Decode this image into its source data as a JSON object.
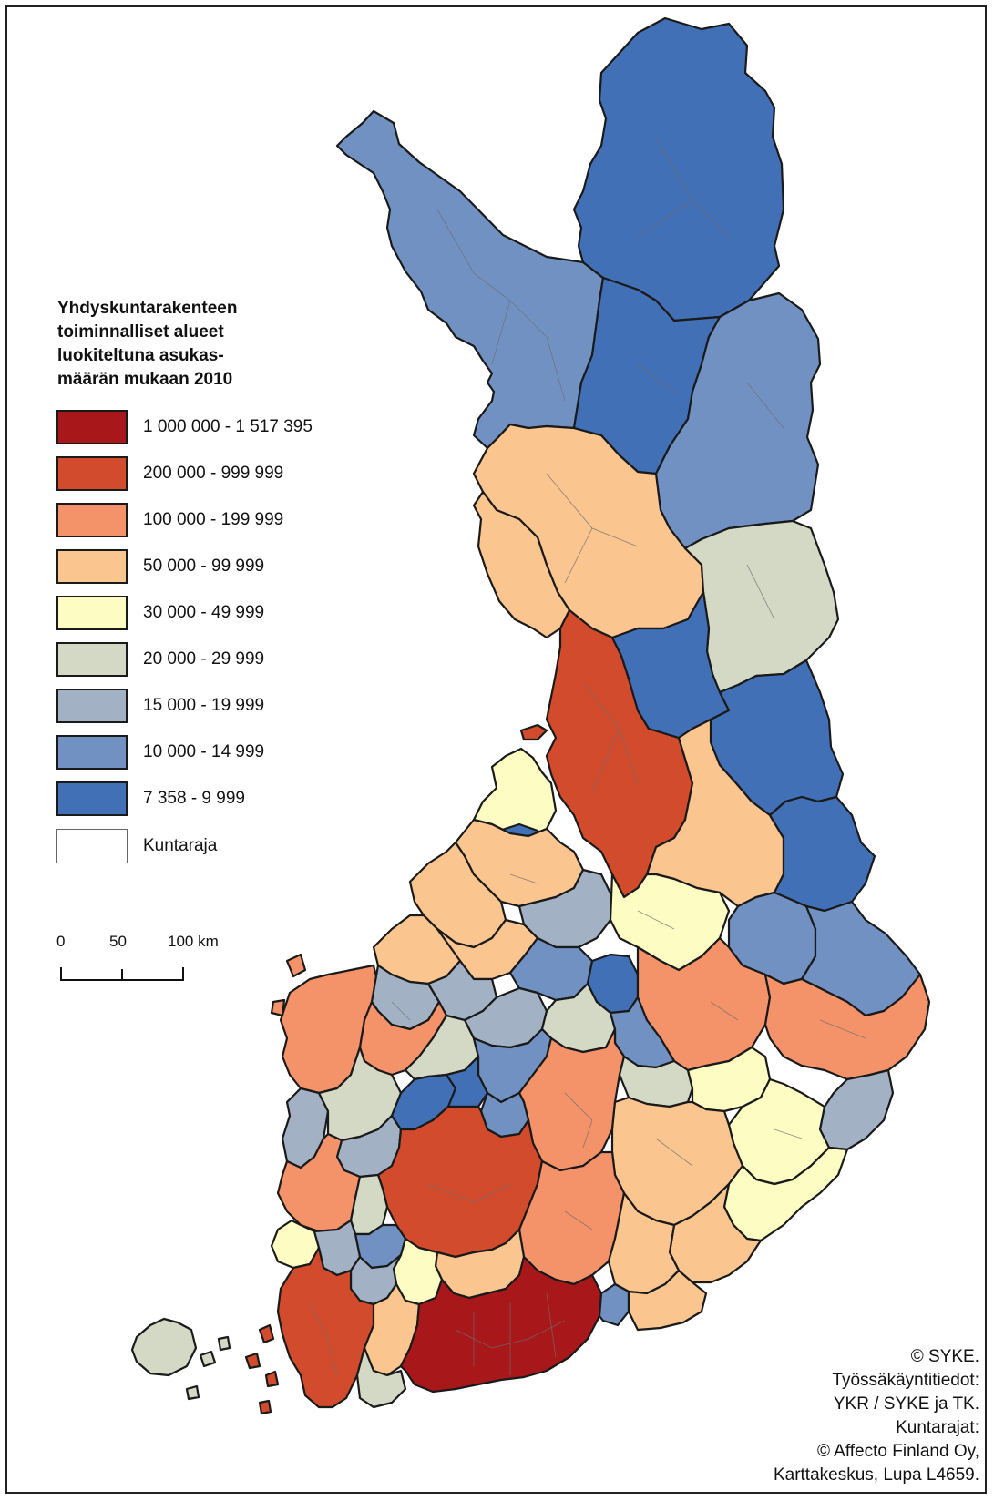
{
  "legend": {
    "title_lines": [
      "Yhdyskuntarakenteen",
      "toiminnalliset alueet",
      "luokiteltuna asukas-",
      "määrän mukaan 2010"
    ],
    "classes": [
      {
        "label": "1 000 000 - 1 517 395",
        "color": "#a8181a"
      },
      {
        "label": "200 000 - 999 999",
        "color": "#d24b2c"
      },
      {
        "label": "100 000 - 199 999",
        "color": "#f4926a"
      },
      {
        "label": "50 000 - 99 999",
        "color": "#fbc590"
      },
      {
        "label": "30 000 - 49 999",
        "color": "#fdfcc3"
      },
      {
        "label": "20 000 - 29 999",
        "color": "#d3d9c5"
      },
      {
        "label": "15 000 - 19 999",
        "color": "#a2b2c4"
      },
      {
        "label": "10 000 - 14 999",
        "color": "#7091c2"
      },
      {
        "label": "7 358 - 9 999",
        "color": "#4270b6"
      }
    ],
    "border_key": {
      "label": "Kuntaraja",
      "color": "#ffffff"
    }
  },
  "scale_bar": {
    "labels": [
      "0",
      "50",
      "100 km"
    ]
  },
  "credits": [
    "© SYKE.",
    "Työssäkäyntitiedot:",
    "YKR / SYKE ja TK.",
    "Kuntarajat:",
    "© Affecto Finland Oy,",
    "Karttakeskus, Lupa L4659."
  ],
  "colors": {
    "class_1": "#a8181a",
    "class_2": "#d24b2c",
    "class_3": "#f4926a",
    "class_4": "#fbc590",
    "class_5": "#fdfcc3",
    "class_6": "#d3d9c5",
    "class_7": "#a2b2c4",
    "class_8": "#7091c2",
    "class_9": "#4270b6",
    "region_border": "#1a1a1a",
    "municipal_border": "#6e6e6e"
  }
}
